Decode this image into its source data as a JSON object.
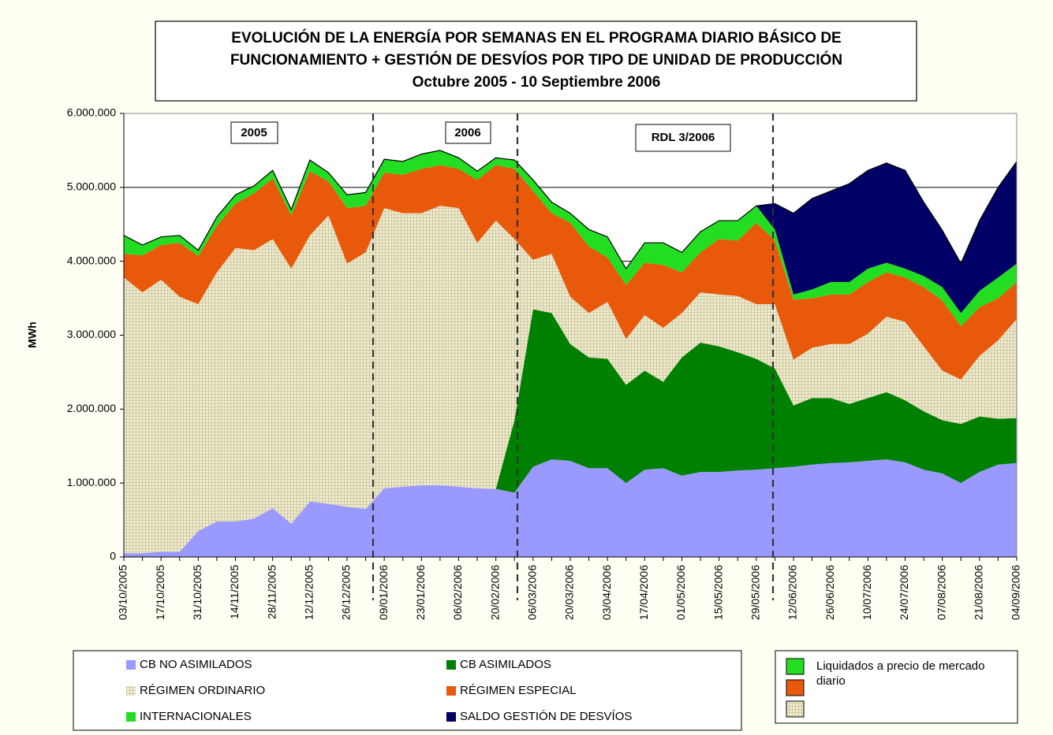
{
  "chart_data": {
    "type": "stacked-area",
    "title": [
      "EVOLUCIÓN DE LA ENERGÍA POR SEMANAS EN EL PROGRAMA DIARIO BÁSICO DE",
      "FUNCIONAMIENTO + GESTIÓN DE DESVÍOS POR TIPO DE UNIDAD DE PRODUCCIÓN",
      "Octubre 2005 - 10 Septiembre 2006"
    ],
    "y_label": "MWh",
    "annotations": [
      "2005",
      "2006",
      "RDL 3/2006"
    ],
    "side_legend_text": "Liquidados a precio de mercado diario",
    "categories": [
      "03/10/2005",
      null,
      "17/10/2005",
      null,
      "31/10/2005",
      null,
      "14/11/2005",
      null,
      "28/11/2005",
      null,
      "12/12/2005",
      null,
      "26/12/2005",
      null,
      "09/01/2006",
      null,
      "23/01/2006",
      null,
      "06/02/2006",
      null,
      "20/02/2006",
      null,
      "06/03/2006",
      null,
      "20/03/2006",
      null,
      "03/04/2006",
      null,
      "17/04/2006",
      null,
      "01/05/2006",
      null,
      "15/05/2006",
      null,
      "29/05/2006",
      null,
      "12/06/2006",
      null,
      "26/06/2006",
      null,
      "10/07/2006",
      null,
      "24/07/2006",
      null,
      "07/08/2006",
      null,
      "21/08/2006",
      null,
      "04/09/2006"
    ],
    "ylim": [
      0,
      6000000
    ],
    "yticks": [
      0,
      {
        "value": 1000000,
        "label": "1.000.000"
      },
      {
        "value": 2000000,
        "label": "2.000.000"
      },
      {
        "value": 3000000,
        "label": "3.000.000"
      },
      {
        "value": 4000000,
        "label": "4.000.000"
      },
      {
        "value": 5000000,
        "label": "5.000.000"
      },
      {
        "value": 6000000,
        "label": "6.000.000"
      }
    ],
    "grid": true,
    "series": [
      {
        "name": "CB NO ASIMILADOS",
        "color": "#9999ff",
        "values": [
          50000,
          50000,
          70000,
          70000,
          350000,
          480000,
          480000,
          520000,
          660000,
          450000,
          750000,
          720000,
          680000,
          650000,
          930000,
          950000,
          970000,
          970000,
          950000,
          930000,
          920000,
          870000,
          1220000,
          1320000,
          1300000,
          1200000,
          1200000,
          1000000,
          1180000,
          1200000,
          1100000,
          1150000,
          1150000,
          1170000,
          1180000,
          1200000,
          1220000,
          1250000,
          1270000,
          1280000,
          1300000,
          1320000,
          1280000,
          1180000,
          1130000,
          1000000,
          1150000,
          1250000,
          1270000
        ]
      },
      {
        "name": "CB ASIMILADOS",
        "color": "#008000",
        "values": [
          0,
          0,
          0,
          0,
          0,
          0,
          0,
          0,
          0,
          0,
          0,
          0,
          0,
          0,
          0,
          0,
          0,
          0,
          0,
          0,
          0,
          980000,
          2130000,
          1980000,
          1580000,
          1500000,
          1480000,
          1330000,
          1340000,
          1170000,
          1600000,
          1750000,
          1700000,
          1600000,
          1500000,
          1350000,
          830000,
          900000,
          880000,
          790000,
          850000,
          910000,
          840000,
          790000,
          720000,
          800000,
          750000,
          620000,
          610000
        ]
      },
      {
        "name": "RÉGIMEN ORDINARIO",
        "color": "#efebcc",
        "values": [
          3730000,
          3530000,
          3680000,
          3450000,
          3070000,
          3370000,
          3700000,
          3630000,
          3640000,
          3450000,
          3600000,
          3900000,
          3290000,
          3470000,
          3790000,
          3700000,
          3680000,
          3780000,
          3770000,
          3320000,
          3630000,
          2450000,
          670000,
          800000,
          640000,
          600000,
          770000,
          620000,
          750000,
          730000,
          600000,
          680000,
          700000,
          760000,
          740000,
          870000,
          620000,
          680000,
          730000,
          810000,
          870000,
          1020000,
          1060000,
          880000,
          670000,
          600000,
          820000,
          1060000,
          1340000
        ]
      },
      {
        "name": "RÉGIMEN ESPECIAL",
        "color": "#e8590c",
        "values": [
          320000,
          500000,
          470000,
          730000,
          650000,
          630000,
          600000,
          770000,
          820000,
          720000,
          870000,
          460000,
          750000,
          630000,
          480000,
          520000,
          600000,
          550000,
          530000,
          850000,
          750000,
          950000,
          930000,
          550000,
          1000000,
          900000,
          600000,
          730000,
          710000,
          850000,
          550000,
          540000,
          750000,
          750000,
          1100000,
          860000,
          810000,
          670000,
          670000,
          670000,
          700000,
          600000,
          600000,
          800000,
          950000,
          720000,
          660000,
          570000,
          500000
        ]
      },
      {
        "name": "INTERNACIONALES",
        "color": "#22dd22",
        "values": [
          250000,
          140000,
          110000,
          100000,
          80000,
          120000,
          120000,
          100000,
          110000,
          80000,
          150000,
          120000,
          180000,
          180000,
          180000,
          180000,
          200000,
          200000,
          150000,
          120000,
          100000,
          120000,
          150000,
          150000,
          130000,
          230000,
          280000,
          220000,
          270000,
          300000,
          270000,
          280000,
          250000,
          270000,
          230000,
          150000,
          70000,
          120000,
          170000,
          170000,
          180000,
          130000,
          120000,
          150000,
          180000,
          180000,
          220000,
          280000,
          250000
        ]
      },
      {
        "name": "SALDO GESTIÓN DE DESVÍOS",
        "color": "#000066",
        "values": [
          0,
          0,
          0,
          0,
          0,
          0,
          0,
          0,
          0,
          0,
          0,
          0,
          0,
          0,
          0,
          0,
          0,
          0,
          0,
          0,
          0,
          0,
          0,
          0,
          0,
          0,
          0,
          0,
          0,
          0,
          0,
          0,
          0,
          0,
          0,
          350000,
          1100000,
          1230000,
          1230000,
          1330000,
          1330000,
          1350000,
          1330000,
          1000000,
          770000,
          670000,
          950000,
          1220000,
          1380000
        ]
      }
    ]
  }
}
